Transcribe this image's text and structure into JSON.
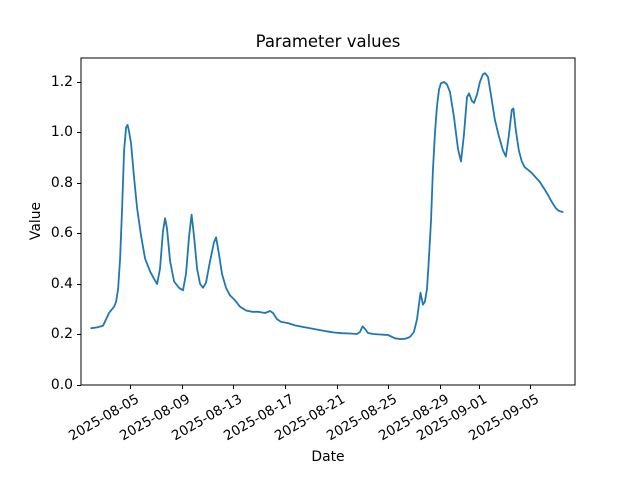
{
  "figure_background": "#ffffff",
  "chart_data": {
    "type": "line",
    "title": "Parameter values",
    "xlabel": "Date",
    "ylabel": "Value",
    "grid": false,
    "legend": null,
    "line_color": "#1f77b4",
    "x_axis": {
      "unit": "days since 2025-08-01",
      "range_days": [
        0.2,
        38.45
      ],
      "ticks": [
        {
          "day": 4,
          "label": "2025-08-05"
        },
        {
          "day": 8,
          "label": "2025-08-09"
        },
        {
          "day": 12,
          "label": "2025-08-13"
        },
        {
          "day": 16,
          "label": "2025-08-17"
        },
        {
          "day": 20,
          "label": "2025-08-21"
        },
        {
          "day": 24,
          "label": "2025-08-25"
        },
        {
          "day": 28,
          "label": "2025-08-29"
        },
        {
          "day": 31,
          "label": "2025-09-01"
        },
        {
          "day": 35,
          "label": "2025-09-05"
        }
      ]
    },
    "y_axis": {
      "range": [
        0,
        1.295
      ],
      "tick_values": [
        0.0,
        0.2,
        0.4,
        0.6,
        0.8,
        1.0,
        1.2
      ],
      "tick_labels": [
        "0.0",
        "0.2",
        "0.4",
        "0.6",
        "0.8",
        "1.0",
        "1.2"
      ]
    },
    "series": [
      {
        "name": "parameter",
        "color": "#1f77b4",
        "points_day_value": [
          [
            1.0,
            0.225
          ],
          [
            1.45,
            0.228
          ],
          [
            1.9,
            0.235
          ],
          [
            2.14,
            0.26
          ],
          [
            2.37,
            0.285
          ],
          [
            2.6,
            0.3
          ],
          [
            2.76,
            0.31
          ],
          [
            2.92,
            0.33
          ],
          [
            3.07,
            0.38
          ],
          [
            3.23,
            0.5
          ],
          [
            3.38,
            0.7
          ],
          [
            3.54,
            0.93
          ],
          [
            3.69,
            1.02
          ],
          [
            3.81,
            1.03
          ],
          [
            3.92,
            1.005
          ],
          [
            4.08,
            0.955
          ],
          [
            4.31,
            0.82
          ],
          [
            4.54,
            0.7
          ],
          [
            4.85,
            0.59
          ],
          [
            5.16,
            0.5
          ],
          [
            5.55,
            0.45
          ],
          [
            5.86,
            0.42
          ],
          [
            6.09,
            0.4
          ],
          [
            6.32,
            0.46
          ],
          [
            6.55,
            0.61
          ],
          [
            6.71,
            0.66
          ],
          [
            6.86,
            0.62
          ],
          [
            7.1,
            0.49
          ],
          [
            7.41,
            0.41
          ],
          [
            7.79,
            0.385
          ],
          [
            8.1,
            0.375
          ],
          [
            8.33,
            0.44
          ],
          [
            8.57,
            0.59
          ],
          [
            8.76,
            0.675
          ],
          [
            8.95,
            0.59
          ],
          [
            9.19,
            0.46
          ],
          [
            9.42,
            0.4
          ],
          [
            9.65,
            0.385
          ],
          [
            9.88,
            0.405
          ],
          [
            10.19,
            0.49
          ],
          [
            10.5,
            0.565
          ],
          [
            10.66,
            0.585
          ],
          [
            10.89,
            0.515
          ],
          [
            11.12,
            0.44
          ],
          [
            11.43,
            0.385
          ],
          [
            11.74,
            0.355
          ],
          [
            12.13,
            0.335
          ],
          [
            12.51,
            0.31
          ],
          [
            12.98,
            0.295
          ],
          [
            13.44,
            0.29
          ],
          [
            13.91,
            0.29
          ],
          [
            14.45,
            0.285
          ],
          [
            14.84,
            0.293
          ],
          [
            15.07,
            0.285
          ],
          [
            15.38,
            0.26
          ],
          [
            15.69,
            0.25
          ],
          [
            16.23,
            0.245
          ],
          [
            16.77,
            0.236
          ],
          [
            17.31,
            0.231
          ],
          [
            17.93,
            0.225
          ],
          [
            18.55,
            0.219
          ],
          [
            19.17,
            0.213
          ],
          [
            19.79,
            0.208
          ],
          [
            20.41,
            0.205
          ],
          [
            21.03,
            0.204
          ],
          [
            21.57,
            0.202
          ],
          [
            21.8,
            0.21
          ],
          [
            22.0,
            0.232
          ],
          [
            22.19,
            0.222
          ],
          [
            22.42,
            0.206
          ],
          [
            22.81,
            0.202
          ],
          [
            23.35,
            0.2
          ],
          [
            23.97,
            0.198
          ],
          [
            24.51,
            0.185
          ],
          [
            24.9,
            0.182
          ],
          [
            25.29,
            0.183
          ],
          [
            25.67,
            0.19
          ],
          [
            25.98,
            0.21
          ],
          [
            26.22,
            0.26
          ],
          [
            26.37,
            0.32
          ],
          [
            26.49,
            0.365
          ],
          [
            26.68,
            0.318
          ],
          [
            26.83,
            0.33
          ],
          [
            26.99,
            0.38
          ],
          [
            27.14,
            0.5
          ],
          [
            27.3,
            0.65
          ],
          [
            27.45,
            0.85
          ],
          [
            27.61,
            1.0
          ],
          [
            27.76,
            1.1
          ],
          [
            27.92,
            1.17
          ],
          [
            28.07,
            1.195
          ],
          [
            28.31,
            1.2
          ],
          [
            28.54,
            1.19
          ],
          [
            28.77,
            1.16
          ],
          [
            29.08,
            1.06
          ],
          [
            29.39,
            0.935
          ],
          [
            29.62,
            0.885
          ],
          [
            29.85,
            0.99
          ],
          [
            30.09,
            1.14
          ],
          [
            30.24,
            1.155
          ],
          [
            30.47,
            1.125
          ],
          [
            30.63,
            1.117
          ],
          [
            30.86,
            1.15
          ],
          [
            31.09,
            1.2
          ],
          [
            31.32,
            1.23
          ],
          [
            31.48,
            1.235
          ],
          [
            31.71,
            1.22
          ],
          [
            31.94,
            1.15
          ],
          [
            32.25,
            1.05
          ],
          [
            32.56,
            0.985
          ],
          [
            32.87,
            0.93
          ],
          [
            33.1,
            0.905
          ],
          [
            33.33,
            0.99
          ],
          [
            33.56,
            1.09
          ],
          [
            33.68,
            1.095
          ],
          [
            33.87,
            1.01
          ],
          [
            34.1,
            0.93
          ],
          [
            34.33,
            0.885
          ],
          [
            34.56,
            0.862
          ],
          [
            34.87,
            0.85
          ],
          [
            35.1,
            0.84
          ],
          [
            35.41,
            0.822
          ],
          [
            35.72,
            0.805
          ],
          [
            36.03,
            0.78
          ],
          [
            36.34,
            0.755
          ],
          [
            36.65,
            0.725
          ],
          [
            36.96,
            0.7
          ],
          [
            37.19,
            0.69
          ],
          [
            37.5,
            0.685
          ]
        ]
      }
    ]
  }
}
